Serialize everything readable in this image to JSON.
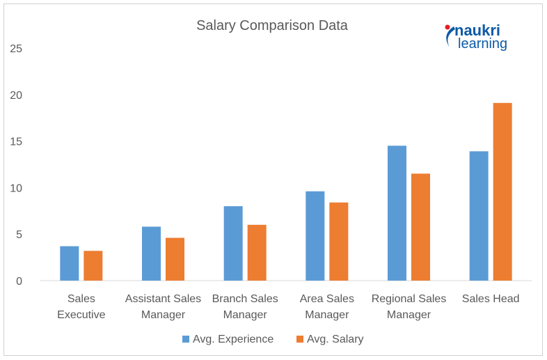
{
  "chart_data": {
    "type": "bar",
    "title": "Salary Comparison Data",
    "categories": [
      [
        "Sales",
        "Executive"
      ],
      [
        "Assistant Sales",
        "Manager"
      ],
      [
        "Branch Sales",
        "Manager"
      ],
      [
        "Area Sales",
        "Manager"
      ],
      [
        "Regional Sales",
        "Manager"
      ],
      [
        "Sales Head"
      ]
    ],
    "series": [
      {
        "name": "Avg. Experience",
        "color": "#5b9bd5",
        "values": [
          3.7,
          5.8,
          8.0,
          9.6,
          14.5,
          13.9
        ]
      },
      {
        "name": "Avg. Salary",
        "color": "#ed7d31",
        "values": [
          3.2,
          4.6,
          6.0,
          8.4,
          11.5,
          19.1
        ]
      }
    ],
    "ylim": [
      0,
      25
    ],
    "yticks": [
      0,
      5,
      10,
      15,
      20,
      25
    ],
    "grid": false,
    "legend_position": "bottom"
  },
  "logo": {
    "line1": "naukri",
    "line2": "learning",
    "dot_color": "#e31e24",
    "color": "#0d5aa7"
  }
}
